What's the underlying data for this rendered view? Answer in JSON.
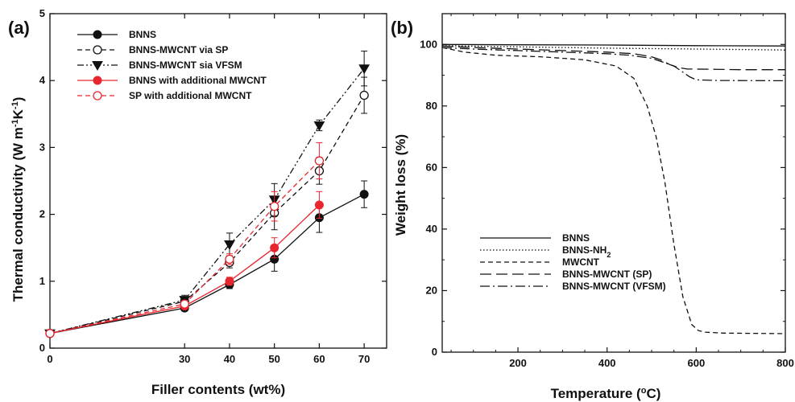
{
  "chart_data": [
    {
      "panel_label": "(a)",
      "type": "line",
      "xlabel": "Filler contents (wt%)",
      "ylabel_parts": [
        "Thermal conductivity (W m",
        "-1",
        "K",
        "-1",
        ")"
      ],
      "xlim": [
        0,
        75
      ],
      "ylim": [
        0,
        5
      ],
      "x_tick_values": [
        0,
        30,
        40,
        50,
        60,
        70
      ],
      "x_tick_labels": [
        "0",
        "30",
        "40",
        "50",
        "60",
        "70"
      ],
      "y_tick_values": [
        0,
        1,
        2,
        3,
        4,
        5
      ],
      "y_tick_labels": [
        "0",
        "1",
        "2",
        "3",
        "4",
        "5"
      ],
      "legend_position": "top-left",
      "series": [
        {
          "name": "BNNS",
          "color": "#111111",
          "line_style": "solid",
          "marker": "filled-circle",
          "x": [
            0,
            30,
            40,
            50,
            60,
            70
          ],
          "y": [
            0.22,
            0.6,
            0.95,
            1.33,
            1.95,
            2.3
          ],
          "err": [
            0,
            0.04,
            0.06,
            0.18,
            0.22,
            0.2
          ]
        },
        {
          "name": "BNNS-MWCNT via SP",
          "color": "#111111",
          "line_style": "dashed",
          "marker": "open-circle",
          "x": [
            0,
            30,
            40,
            50,
            60,
            70
          ],
          "y": [
            0.22,
            0.7,
            1.28,
            2.02,
            2.65,
            3.78
          ],
          "err": [
            0,
            0.06,
            0.08,
            0.25,
            0.2,
            0.27
          ]
        },
        {
          "name": "BNNS-MWCNT sia VFSM",
          "color": "#111111",
          "line_style": "dash-dot-dot",
          "marker": "filled-triangle-down",
          "x": [
            0,
            30,
            40,
            50,
            60,
            70
          ],
          "y": [
            0.22,
            0.72,
            1.55,
            2.22,
            3.33,
            4.18
          ],
          "err": [
            0,
            0.07,
            0.17,
            0.24,
            0.08,
            0.26
          ]
        },
        {
          "name": "BNNS with additional MWCNT",
          "color": "#e8262f",
          "line_style": "solid",
          "marker": "filled-circle",
          "x": [
            0,
            30,
            40,
            50,
            60
          ],
          "y": [
            0.22,
            0.63,
            1.0,
            1.5,
            2.14
          ],
          "err": [
            0,
            0.04,
            0.06,
            0.15,
            0.2
          ]
        },
        {
          "name": "SP with additional MWCNT",
          "color": "#e8262f",
          "line_style": "dashed",
          "marker": "open-circle",
          "x": [
            0,
            30,
            40,
            50,
            60
          ],
          "y": [
            0.22,
            0.66,
            1.33,
            2.12,
            2.8
          ],
          "err": [
            0,
            0.05,
            0.08,
            0.22,
            0.27
          ]
        }
      ]
    },
    {
      "panel_label": "(b)",
      "type": "line",
      "xlabel_parts": [
        "Temperature (",
        "o",
        "C)"
      ],
      "ylabel": "Weight loss (%)",
      "xlim": [
        30,
        800
      ],
      "ylim": [
        0,
        110
      ],
      "x_tick_values": [
        200,
        400,
        600,
        800
      ],
      "x_tick_labels": [
        "200",
        "400",
        "600",
        "800"
      ],
      "y_tick_values": [
        0,
        20,
        40,
        60,
        80,
        100
      ],
      "y_tick_labels": [
        "0",
        "20",
        "40",
        "60",
        "80",
        "100"
      ],
      "legend_position": "bottom-left",
      "series": [
        {
          "name": "BNNS",
          "line_style": "solid",
          "x": [
            30,
            200,
            400,
            600,
            800
          ],
          "y": [
            100,
            99.9,
            99.8,
            99.6,
            99.5
          ]
        },
        {
          "name_parts": [
            "BNNS-NH",
            "2"
          ],
          "line_style": "dotted",
          "x": [
            30,
            200,
            400,
            600,
            800
          ],
          "y": [
            99.6,
            99.2,
            98.8,
            98.5,
            98.2
          ]
        },
        {
          "name": "MWCNT",
          "line_style": "dashed",
          "x": [
            30,
            80,
            150,
            250,
            350,
            420,
            460,
            490,
            510,
            530,
            550,
            570,
            590,
            605,
            620,
            660,
            800
          ],
          "y": [
            99,
            97.5,
            96.5,
            96,
            95,
            93,
            89,
            80,
            70,
            55,
            35,
            18,
            9,
            7,
            6.5,
            6.2,
            6
          ]
        },
        {
          "name": "BNNS-MWCNT (SP)",
          "line_style": "long-dashed",
          "x": [
            30,
            100,
            200,
            300,
            400,
            460,
            500,
            520,
            540,
            560,
            580,
            600,
            700,
            800
          ],
          "y": [
            99.5,
            99,
            98.5,
            98,
            97.5,
            97,
            96,
            95,
            93.5,
            92.5,
            92,
            92,
            91.8,
            91.8
          ]
        },
        {
          "name": "BNNS-MWCNT (VFSM)",
          "line_style": "dash-dot",
          "x": [
            30,
            100,
            200,
            300,
            400,
            450,
            500,
            530,
            550,
            570,
            585,
            600,
            650,
            800
          ],
          "y": [
            99,
            98.5,
            98,
            97.5,
            97,
            96.5,
            95.5,
            94,
            93,
            91,
            89.5,
            88.5,
            88.3,
            88.2
          ]
        }
      ]
    }
  ]
}
